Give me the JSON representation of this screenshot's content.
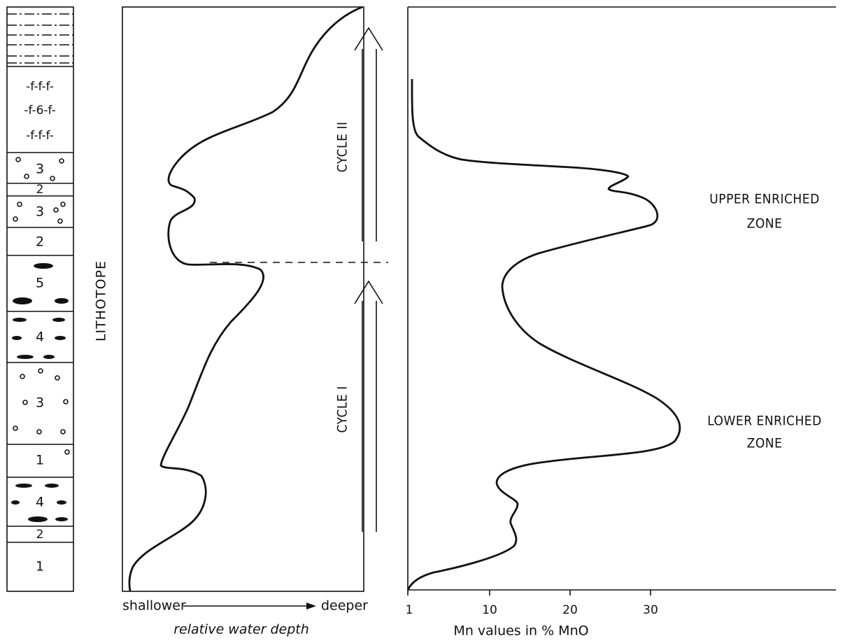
{
  "lithology": {
    "title": "LITHOTOPE",
    "layers": [
      {
        "rows": [
          "-f-f-f-",
          "-f-6-f-",
          "-f-f-f-"
        ]
      },
      {
        "label": "3"
      },
      {
        "label": "2"
      },
      {
        "label": "3"
      },
      {
        "label": "2"
      },
      {
        "label": "5"
      },
      {
        "label": "4"
      },
      {
        "label": "3"
      },
      {
        "label": "1"
      },
      {
        "label": "4"
      },
      {
        "label": "2"
      },
      {
        "label": "1"
      }
    ]
  },
  "water_depth": {
    "left_label": "shallower",
    "right_label": "deeper",
    "axis_title": "relative water depth",
    "cycles": [
      "CYCLE II",
      "CYCLE I"
    ]
  },
  "manganese": {
    "axis_title": "Mn values in % MnO",
    "tick_labels": [
      "1",
      "10",
      "20",
      "30"
    ],
    "annotations": [
      [
        "UPPER ENRICHED",
        "ZONE"
      ],
      [
        "LOWER ENRICHED",
        "ZONE"
      ]
    ]
  }
}
